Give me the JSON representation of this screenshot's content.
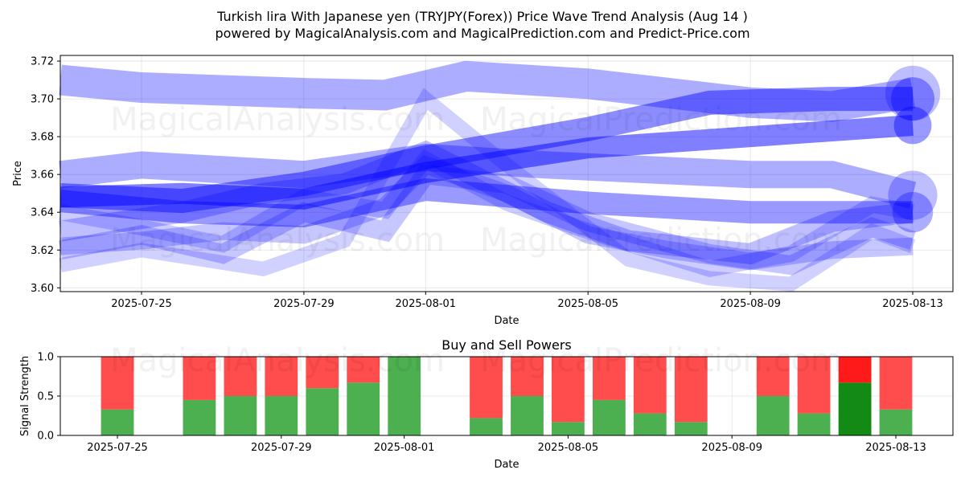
{
  "title_line1": "Turkish lira With Japanese yen (TRYJPY(Forex)) Price Wave Trend Analysis (Aug 14 )",
  "title_line2": "powered by MagicalAnalysis.com and MagicalPrediction.com and Predict-Price.com",
  "watermarks": [
    "MagicalAnalysis.com",
    "MagicalPrediction.com"
  ],
  "chart_data": [
    {
      "type": "line",
      "title": "",
      "xlabel": "Date",
      "ylabel": "Price",
      "x_ticks": [
        "2025-07-25",
        "2025-07-29",
        "2025-08-01",
        "2025-08-05",
        "2025-08-09",
        "2025-08-13"
      ],
      "y_ticks": [
        "3.60",
        "3.62",
        "3.64",
        "3.66",
        "3.68",
        "3.70",
        "3.72"
      ],
      "xlim": [
        "2025-07-22",
        "2025-08-14"
      ],
      "ylim": [
        3.598,
        3.723
      ],
      "grid": true,
      "color": "#0000ff",
      "series": [
        {
          "x": [
            "2025-07-23",
            "2025-07-25",
            "2025-07-29",
            "2025-07-31",
            "2025-08-02",
            "2025-08-05",
            "2025-08-09",
            "2025-08-11",
            "2025-08-13"
          ],
          "values": [
            3.71,
            3.706,
            3.703,
            3.702,
            3.712,
            3.708,
            3.698,
            3.696,
            3.703
          ]
        },
        {
          "x": [
            "2025-07-23",
            "2025-07-26",
            "2025-07-29",
            "2025-08-01",
            "2025-08-05",
            "2025-08-08",
            "2025-08-11",
            "2025-08-13"
          ],
          "values": [
            3.649,
            3.646,
            3.655,
            3.669,
            3.684,
            3.698,
            3.7,
            3.7
          ]
        },
        {
          "x": [
            "2025-07-23",
            "2025-07-26",
            "2025-07-29",
            "2025-08-01",
            "2025-08-05",
            "2025-08-09",
            "2025-08-13"
          ],
          "values": [
            3.648,
            3.65,
            3.647,
            3.661,
            3.674,
            3.68,
            3.686
          ]
        },
        {
          "x": [
            "2025-07-23",
            "2025-07-25",
            "2025-07-29",
            "2025-08-01",
            "2025-08-04",
            "2025-08-09",
            "2025-08-11",
            "2025-08-13"
          ],
          "values": [
            3.66,
            3.665,
            3.66,
            3.669,
            3.665,
            3.66,
            3.66,
            3.649
          ]
        },
        {
          "x": [
            "2025-07-23",
            "2025-07-26",
            "2025-07-29",
            "2025-08-01",
            "2025-08-05",
            "2025-08-09",
            "2025-08-13"
          ],
          "values": [
            3.646,
            3.64,
            3.638,
            3.652,
            3.645,
            3.64,
            3.64
          ]
        },
        {
          "x": [
            "2025-07-23",
            "2025-07-25",
            "2025-07-27",
            "2025-07-29",
            "2025-07-31",
            "2025-08-01",
            "2025-08-03",
            "2025-08-05",
            "2025-08-07",
            "2025-08-09",
            "2025-08-11",
            "2025-08-13"
          ],
          "values": [
            3.622,
            3.625,
            3.63,
            3.628,
            3.643,
            3.665,
            3.65,
            3.628,
            3.62,
            3.614,
            3.62,
            3.622
          ]
        },
        {
          "x": [
            "2025-07-23",
            "2025-07-25",
            "2025-07-27",
            "2025-07-29",
            "2025-07-31",
            "2025-08-01",
            "2025-08-03",
            "2025-08-05",
            "2025-08-08",
            "2025-08-10",
            "2025-08-12",
            "2025-08-13"
          ],
          "values": [
            3.64,
            3.632,
            3.623,
            3.648,
            3.641,
            3.668,
            3.645,
            3.63,
            3.61,
            3.618,
            3.644,
            3.64
          ]
        },
        {
          "x": [
            "2025-07-23",
            "2025-07-25",
            "2025-07-27",
            "2025-07-29",
            "2025-07-31",
            "2025-08-01",
            "2025-08-03",
            "2025-08-05",
            "2025-08-08",
            "2025-08-10",
            "2025-08-12",
            "2025-08-13"
          ],
          "values": [
            3.62,
            3.628,
            3.618,
            3.64,
            3.63,
            3.66,
            3.655,
            3.635,
            3.618,
            3.612,
            3.632,
            3.625
          ]
        },
        {
          "x": [
            "2025-07-23",
            "2025-07-25",
            "2025-07-28",
            "2025-07-30",
            "2025-08-01",
            "2025-08-03",
            "2025-08-06",
            "2025-08-08",
            "2025-08-10",
            "2025-08-12",
            "2025-08-13"
          ],
          "values": [
            3.612,
            3.62,
            3.61,
            3.625,
            3.7,
            3.665,
            3.615,
            3.605,
            3.602,
            3.63,
            3.622
          ]
        },
        {
          "x": [
            "2025-07-23",
            "2025-07-26",
            "2025-07-28",
            "2025-07-30",
            "2025-08-01",
            "2025-08-04",
            "2025-08-06",
            "2025-08-09",
            "2025-08-11",
            "2025-08-13"
          ],
          "values": [
            3.63,
            3.64,
            3.65,
            3.655,
            3.672,
            3.64,
            3.625,
            3.618,
            3.635,
            3.64
          ]
        }
      ]
    },
    {
      "type": "bar",
      "title": "Buy and Sell Powers",
      "xlabel": "Date",
      "ylabel": "Signal Strength",
      "x_ticks": [
        "2025-07-25",
        "2025-07-29",
        "2025-08-01",
        "2025-08-05",
        "2025-08-09",
        "2025-08-13"
      ],
      "y_ticks": [
        "0.0",
        "0.5",
        "1.0"
      ],
      "xlim": [
        "2025-07-22",
        "2025-08-14"
      ],
      "ylim": [
        0,
        1
      ],
      "grid": true,
      "buy_color": "#4caf50",
      "sell_color": "#ff4c4c",
      "highlight_buy_color": "#138a13",
      "highlight_sell_color": "#ff1a1a",
      "series": [
        {
          "name": "buy",
          "x": [
            "2025-07-25",
            "2025-07-27",
            "2025-07-28",
            "2025-07-29",
            "2025-07-30",
            "2025-07-31",
            "2025-08-01",
            "2025-08-03",
            "2025-08-04",
            "2025-08-05",
            "2025-08-06",
            "2025-08-07",
            "2025-08-08",
            "2025-08-10",
            "2025-08-11",
            "2025-08-12",
            "2025-08-13"
          ],
          "values": [
            0.33,
            0.45,
            0.5,
            0.5,
            0.6,
            0.67,
            1.0,
            0.22,
            0.5,
            0.17,
            0.45,
            0.28,
            0.17,
            0.5,
            0.28,
            0.67,
            0.33
          ]
        },
        {
          "name": "sell",
          "x": [
            "2025-07-25",
            "2025-07-27",
            "2025-07-28",
            "2025-07-29",
            "2025-07-30",
            "2025-07-31",
            "2025-08-01",
            "2025-08-03",
            "2025-08-04",
            "2025-08-05",
            "2025-08-06",
            "2025-08-07",
            "2025-08-08",
            "2025-08-10",
            "2025-08-11",
            "2025-08-12",
            "2025-08-13"
          ],
          "values": [
            0.67,
            0.55,
            0.5,
            0.5,
            0.4,
            0.33,
            0.0,
            0.78,
            0.5,
            0.83,
            0.55,
            0.72,
            0.83,
            0.5,
            0.72,
            0.33,
            0.67
          ]
        }
      ],
      "highlight_date": "2025-08-12"
    }
  ]
}
